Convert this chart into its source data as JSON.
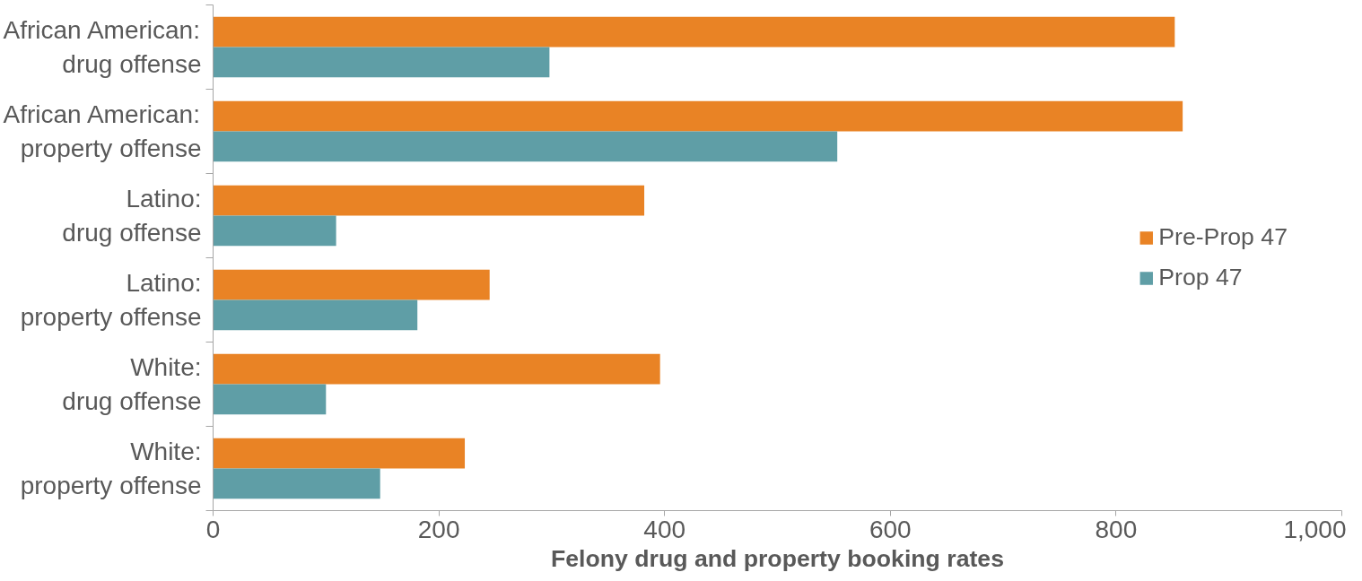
{
  "chart_data": {
    "type": "bar",
    "orientation": "horizontal",
    "xlabel": "Felony drug and property booking rates",
    "categories": [
      "African American:\ndrug offense",
      "African American:\nproperty offense",
      "Latino:\ndrug offense",
      "Latino:\nproperty offense",
      "White:\ndrug offense",
      "White:\nproperty offense"
    ],
    "series": [
      {
        "name": "Pre-Prop 47",
        "color": "#e98325",
        "values": [
          852,
          859,
          382,
          245,
          396,
          223
        ]
      },
      {
        "name": "Prop 47",
        "color": "#5f9ea6",
        "values": [
          298,
          553,
          109,
          181,
          100,
          148
        ]
      }
    ],
    "xlim": [
      0,
      1000
    ],
    "xticks": [
      0,
      200,
      400,
      600,
      800,
      {
        "value": 1000,
        "label": "1,000"
      }
    ],
    "grid": false,
    "legend": "right"
  }
}
